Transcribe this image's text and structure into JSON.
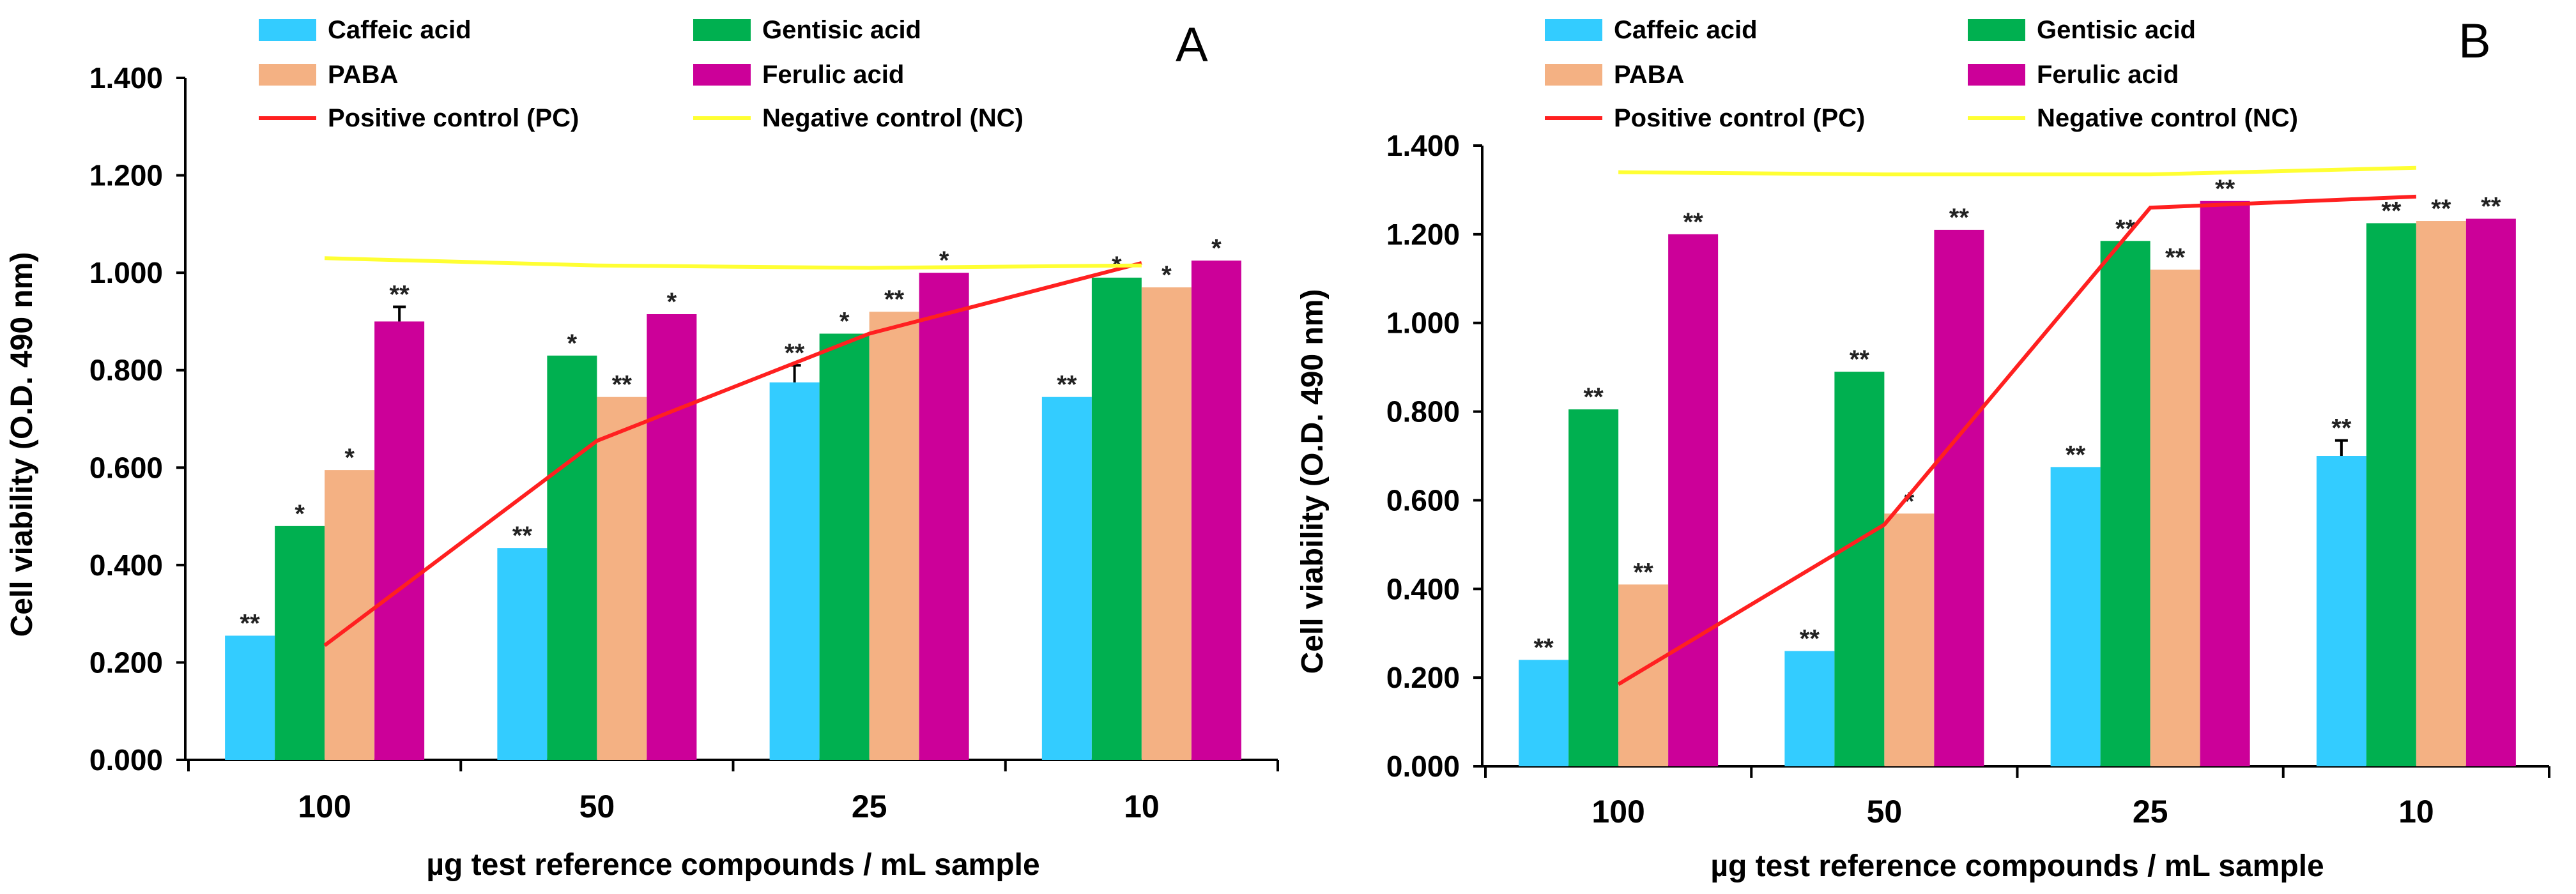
{
  "chart_data": [
    {
      "type": "bar",
      "panel_label": "A",
      "categories": [
        "100",
        "50",
        "25",
        "10"
      ],
      "xlabel": "µg  test reference compounds / mL sample",
      "ylabel": "Cell viability (O.D. 490 nm)",
      "ylim": [
        0,
        1.4
      ],
      "yticks": [
        "0.000",
        "0.200",
        "0.400",
        "0.600",
        "0.800",
        "1.000",
        "1.200",
        "1.400"
      ],
      "series": [
        {
          "name": "Caffeic acid",
          "color": "#33ccff",
          "values": [
            0.255,
            0.435,
            0.775,
            0.745
          ],
          "errors": [
            0,
            0,
            0.035,
            0
          ],
          "labels": [
            "**",
            "**",
            "**",
            "**"
          ]
        },
        {
          "name": "Gentisic acid",
          "color": "#00b050",
          "values": [
            0.48,
            0.83,
            0.875,
            0.99
          ],
          "errors": [
            0,
            0,
            0,
            0
          ],
          "labels": [
            "*",
            "*",
            "*",
            "*"
          ]
        },
        {
          "name": "PABA",
          "color": "#f4b183",
          "values": [
            0.595,
            0.745,
            0.92,
            0.97
          ],
          "errors": [
            0,
            0,
            0,
            0
          ],
          "labels": [
            "*",
            "**",
            "**",
            "*"
          ]
        },
        {
          "name": "Ferulic acid",
          "color": "#cc0099",
          "values": [
            0.9,
            0.915,
            1.0,
            1.025
          ],
          "errors": [
            0.03,
            0,
            0,
            0
          ],
          "labels": [
            "**",
            "*",
            "*",
            "*"
          ]
        }
      ],
      "lines": [
        {
          "name": "Positive control (PC)",
          "color": "#ff2020",
          "values": [
            0.235,
            0.655,
            0.875,
            1.02
          ]
        },
        {
          "name": "Negative control (NC)",
          "color": "#ffff33",
          "values": [
            1.03,
            1.015,
            1.01,
            1.015
          ]
        }
      ]
    },
    {
      "type": "bar",
      "panel_label": "B",
      "categories": [
        "100",
        "50",
        "25",
        "10"
      ],
      "xlabel": "µg  test reference compounds / mL sample",
      "ylabel": "Cell viability (O.D. 490 nm)",
      "ylim": [
        0,
        1.4
      ],
      "yticks": [
        "0.000",
        "0.200",
        "0.400",
        "0.600",
        "0.800",
        "1.000",
        "1.200",
        "1.400"
      ],
      "series": [
        {
          "name": "Caffeic acid",
          "color": "#33ccff",
          "values": [
            0.24,
            0.26,
            0.675,
            0.7
          ],
          "errors": [
            0,
            0,
            0,
            0.035
          ],
          "labels": [
            "**",
            "**",
            "**",
            "**"
          ]
        },
        {
          "name": "Gentisic acid",
          "color": "#00b050",
          "values": [
            0.805,
            0.89,
            1.185,
            1.225
          ],
          "errors": [
            0,
            0,
            0,
            0
          ],
          "labels": [
            "**",
            "**",
            "**",
            "**"
          ]
        },
        {
          "name": "PABA",
          "color": "#f4b183",
          "values": [
            0.41,
            0.57,
            1.12,
            1.23
          ],
          "errors": [
            0,
            0,
            0,
            0
          ],
          "labels": [
            "**",
            "*",
            "**",
            "**"
          ]
        },
        {
          "name": "Ferulic acid",
          "color": "#cc0099",
          "values": [
            1.2,
            1.21,
            1.275,
            1.235
          ],
          "errors": [
            0,
            0,
            0,
            0
          ],
          "labels": [
            "**",
            "**",
            "**",
            "**"
          ]
        }
      ],
      "lines": [
        {
          "name": "Positive control (PC)",
          "color": "#ff2020",
          "values": [
            0.185,
            0.545,
            1.26,
            1.285
          ]
        },
        {
          "name": "Negative control (NC)",
          "color": "#ffff33",
          "values": [
            1.34,
            1.335,
            1.335,
            1.35
          ]
        }
      ]
    }
  ]
}
